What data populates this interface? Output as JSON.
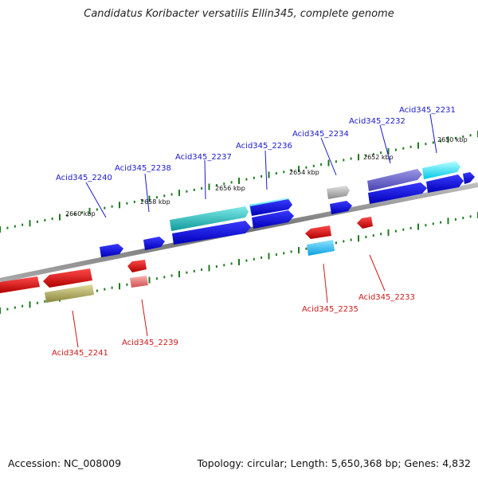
{
  "title": "Candidatus Koribacter versatilis Ellin345, complete genome",
  "footer": {
    "accession": "Accession: NC_008009",
    "stats": "Topology: circular; Length: 5,650,368 bp; Genes: 4,832"
  },
  "colors": {
    "forward_label": "#1a1acc",
    "reverse_label": "#cc1a1a",
    "tick": "#1f7a1f",
    "backbone": "#8c8c8c"
  },
  "ruler_labels": [
    "2660 kbp",
    "2658 kbp",
    "2656 kbp",
    "2654 kbp",
    "2652 kbp",
    "2650 kbp"
  ],
  "forward_genes": [
    {
      "label": "Acid345_2240"
    },
    {
      "label": "Acid345_2238"
    },
    {
      "label": "Acid345_2237"
    },
    {
      "label": "Acid345_2236"
    },
    {
      "label": "Acid345_2234"
    },
    {
      "label": "Acid345_2232"
    },
    {
      "label": "Acid345_2231"
    }
  ],
  "reverse_genes": [
    {
      "label": "Acid345_2241"
    },
    {
      "label": "Acid345_2239"
    },
    {
      "label": "Acid345_2235"
    },
    {
      "label": "Acid345_2233"
    }
  ]
}
